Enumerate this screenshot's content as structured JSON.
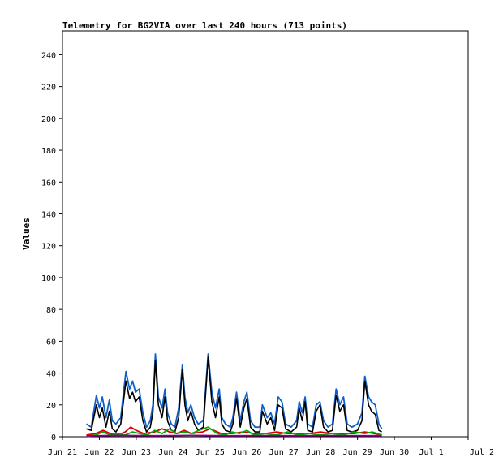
{
  "chart_data": {
    "type": "line",
    "title": "Telemetry for BG2VIA over last 240 hours (713 points)",
    "ylabel": "Values",
    "xlabel": "",
    "x_ticks": [
      "Jun 21",
      "Jun 22",
      "Jun 23",
      "Jun 24",
      "Jun 25",
      "Jun 26",
      "Jun 27",
      "Jun 28",
      "Jun 29",
      "Jun 30",
      "Jul 1",
      "Jul 2"
    ],
    "xlim": [
      "Jun 21",
      "Jul 2"
    ],
    "ylim": [
      0,
      255
    ],
    "y_ticks": [
      0,
      20,
      40,
      60,
      80,
      100,
      120,
      140,
      160,
      180,
      200,
      220,
      240
    ],
    "grid": false,
    "legend": "none",
    "series": [
      {
        "color": "#1060c8",
        "points": [
          [
            0.65,
            8
          ],
          [
            0.78,
            6
          ],
          [
            0.92,
            26
          ],
          [
            1.0,
            18
          ],
          [
            1.08,
            25
          ],
          [
            1.18,
            12
          ],
          [
            1.27,
            23
          ],
          [
            1.35,
            10
          ],
          [
            1.45,
            8
          ],
          [
            1.58,
            12
          ],
          [
            1.72,
            41
          ],
          [
            1.82,
            30
          ],
          [
            1.9,
            35
          ],
          [
            1.98,
            28
          ],
          [
            2.08,
            30
          ],
          [
            2.18,
            15
          ],
          [
            2.28,
            6
          ],
          [
            2.38,
            10
          ],
          [
            2.45,
            20
          ],
          [
            2.52,
            52
          ],
          [
            2.6,
            25
          ],
          [
            2.7,
            18
          ],
          [
            2.78,
            30
          ],
          [
            2.85,
            15
          ],
          [
            2.95,
            8
          ],
          [
            3.05,
            6
          ],
          [
            3.15,
            18
          ],
          [
            3.25,
            45
          ],
          [
            3.32,
            25
          ],
          [
            3.4,
            15
          ],
          [
            3.48,
            20
          ],
          [
            3.58,
            12
          ],
          [
            3.68,
            8
          ],
          [
            3.82,
            10
          ],
          [
            3.95,
            52
          ],
          [
            4.05,
            28
          ],
          [
            4.15,
            18
          ],
          [
            4.25,
            30
          ],
          [
            4.32,
            12
          ],
          [
            4.42,
            8
          ],
          [
            4.55,
            6
          ],
          [
            4.62,
            12
          ],
          [
            4.72,
            28
          ],
          [
            4.82,
            10
          ],
          [
            4.92,
            22
          ],
          [
            5.0,
            28
          ],
          [
            5.1,
            10
          ],
          [
            5.22,
            6
          ],
          [
            5.35,
            6
          ],
          [
            5.42,
            20
          ],
          [
            5.55,
            12
          ],
          [
            5.65,
            15
          ],
          [
            5.75,
            8
          ],
          [
            5.85,
            25
          ],
          [
            5.95,
            22
          ],
          [
            6.05,
            8
          ],
          [
            6.2,
            6
          ],
          [
            6.35,
            10
          ],
          [
            6.42,
            22
          ],
          [
            6.5,
            15
          ],
          [
            6.58,
            25
          ],
          [
            6.65,
            8
          ],
          [
            6.78,
            6
          ],
          [
            6.88,
            20
          ],
          [
            6.98,
            22
          ],
          [
            7.08,
            10
          ],
          [
            7.2,
            6
          ],
          [
            7.32,
            8
          ],
          [
            7.42,
            30
          ],
          [
            7.52,
            20
          ],
          [
            7.62,
            25
          ],
          [
            7.72,
            8
          ],
          [
            7.85,
            6
          ],
          [
            8.0,
            8
          ],
          [
            8.12,
            15
          ],
          [
            8.2,
            38
          ],
          [
            8.3,
            25
          ],
          [
            8.38,
            22
          ],
          [
            8.48,
            20
          ],
          [
            8.58,
            8
          ],
          [
            8.66,
            5
          ]
        ]
      },
      {
        "color": "#000000",
        "points": [
          [
            0.65,
            5
          ],
          [
            0.78,
            4
          ],
          [
            0.92,
            20
          ],
          [
            1.0,
            12
          ],
          [
            1.08,
            18
          ],
          [
            1.18,
            6
          ],
          [
            1.27,
            16
          ],
          [
            1.35,
            5
          ],
          [
            1.45,
            3
          ],
          [
            1.58,
            8
          ],
          [
            1.72,
            35
          ],
          [
            1.82,
            24
          ],
          [
            1.9,
            28
          ],
          [
            1.98,
            22
          ],
          [
            2.08,
            25
          ],
          [
            2.18,
            10
          ],
          [
            2.28,
            3
          ],
          [
            2.38,
            6
          ],
          [
            2.45,
            15
          ],
          [
            2.52,
            48
          ],
          [
            2.6,
            20
          ],
          [
            2.7,
            12
          ],
          [
            2.78,
            25
          ],
          [
            2.85,
            10
          ],
          [
            2.95,
            4
          ],
          [
            3.05,
            3
          ],
          [
            3.15,
            12
          ],
          [
            3.25,
            42
          ],
          [
            3.32,
            20
          ],
          [
            3.4,
            10
          ],
          [
            3.48,
            16
          ],
          [
            3.58,
            8
          ],
          [
            3.68,
            4
          ],
          [
            3.82,
            6
          ],
          [
            3.95,
            50
          ],
          [
            4.05,
            22
          ],
          [
            4.15,
            12
          ],
          [
            4.25,
            25
          ],
          [
            4.32,
            8
          ],
          [
            4.42,
            4
          ],
          [
            4.55,
            3
          ],
          [
            4.62,
            8
          ],
          [
            4.72,
            24
          ],
          [
            4.82,
            6
          ],
          [
            4.92,
            18
          ],
          [
            5.0,
            24
          ],
          [
            5.1,
            6
          ],
          [
            5.22,
            3
          ],
          [
            5.35,
            3
          ],
          [
            5.42,
            16
          ],
          [
            5.55,
            8
          ],
          [
            5.65,
            12
          ],
          [
            5.75,
            4
          ],
          [
            5.85,
            20
          ],
          [
            5.95,
            18
          ],
          [
            6.05,
            5
          ],
          [
            6.2,
            3
          ],
          [
            6.35,
            6
          ],
          [
            6.42,
            18
          ],
          [
            6.5,
            10
          ],
          [
            6.58,
            22
          ],
          [
            6.65,
            4
          ],
          [
            6.78,
            3
          ],
          [
            6.88,
            16
          ],
          [
            6.98,
            20
          ],
          [
            7.08,
            6
          ],
          [
            7.2,
            3
          ],
          [
            7.32,
            4
          ],
          [
            7.42,
            26
          ],
          [
            7.52,
            16
          ],
          [
            7.62,
            20
          ],
          [
            7.72,
            4
          ],
          [
            7.85,
            3
          ],
          [
            8.0,
            4
          ],
          [
            8.12,
            10
          ],
          [
            8.2,
            35
          ],
          [
            8.3,
            20
          ],
          [
            8.38,
            16
          ],
          [
            8.48,
            14
          ],
          [
            8.58,
            4
          ],
          [
            8.66,
            3
          ]
        ]
      },
      {
        "color": "#dd0000",
        "points": [
          [
            0.65,
            1
          ],
          [
            0.9,
            2
          ],
          [
            1.1,
            4
          ],
          [
            1.3,
            2
          ],
          [
            1.5,
            1
          ],
          [
            1.7,
            3
          ],
          [
            1.85,
            6
          ],
          [
            2.0,
            4
          ],
          [
            2.2,
            2
          ],
          [
            2.5,
            3
          ],
          [
            2.7,
            5
          ],
          [
            2.9,
            3
          ],
          [
            3.1,
            2
          ],
          [
            3.3,
            4
          ],
          [
            3.5,
            2
          ],
          [
            3.8,
            3
          ],
          [
            4.0,
            5
          ],
          [
            4.3,
            2
          ],
          [
            4.6,
            2
          ],
          [
            4.9,
            3
          ],
          [
            5.2,
            2
          ],
          [
            5.5,
            2
          ],
          [
            5.8,
            3
          ],
          [
            6.1,
            2
          ],
          [
            6.4,
            2
          ],
          [
            6.7,
            2
          ],
          [
            7.0,
            3
          ],
          [
            7.3,
            2
          ],
          [
            7.6,
            2
          ],
          [
            7.9,
            2
          ],
          [
            8.2,
            3
          ],
          [
            8.45,
            2
          ],
          [
            8.66,
            1
          ]
        ]
      },
      {
        "color": "#00aa00",
        "points": [
          [
            0.65,
            0
          ],
          [
            0.9,
            1
          ],
          [
            1.1,
            3
          ],
          [
            1.3,
            1
          ],
          [
            1.5,
            2
          ],
          [
            1.7,
            1
          ],
          [
            1.9,
            3
          ],
          [
            2.1,
            2
          ],
          [
            2.3,
            1
          ],
          [
            2.5,
            4
          ],
          [
            2.7,
            2
          ],
          [
            2.9,
            5
          ],
          [
            3.1,
            2
          ],
          [
            3.3,
            3
          ],
          [
            3.5,
            2
          ],
          [
            3.7,
            4
          ],
          [
            3.95,
            6
          ],
          [
            4.2,
            2
          ],
          [
            4.4,
            1
          ],
          [
            4.6,
            3
          ],
          [
            4.8,
            2
          ],
          [
            5.0,
            4
          ],
          [
            5.2,
            1
          ],
          [
            5.5,
            2
          ],
          [
            5.8,
            1
          ],
          [
            6.1,
            3
          ],
          [
            6.4,
            1
          ],
          [
            6.7,
            2
          ],
          [
            7.0,
            1
          ],
          [
            7.3,
            2
          ],
          [
            7.6,
            1
          ],
          [
            7.9,
            3
          ],
          [
            8.2,
            2
          ],
          [
            8.4,
            3
          ],
          [
            8.66,
            1
          ]
        ]
      },
      {
        "color": "#880088",
        "points": [
          [
            0.65,
            0.5
          ],
          [
            1.5,
            0.8
          ],
          [
            2.5,
            0.6
          ],
          [
            3.5,
            0.8
          ],
          [
            4.5,
            0.6
          ],
          [
            5.5,
            0.7
          ],
          [
            6.5,
            0.6
          ],
          [
            7.5,
            0.7
          ],
          [
            8.66,
            0.6
          ]
        ]
      }
    ]
  }
}
